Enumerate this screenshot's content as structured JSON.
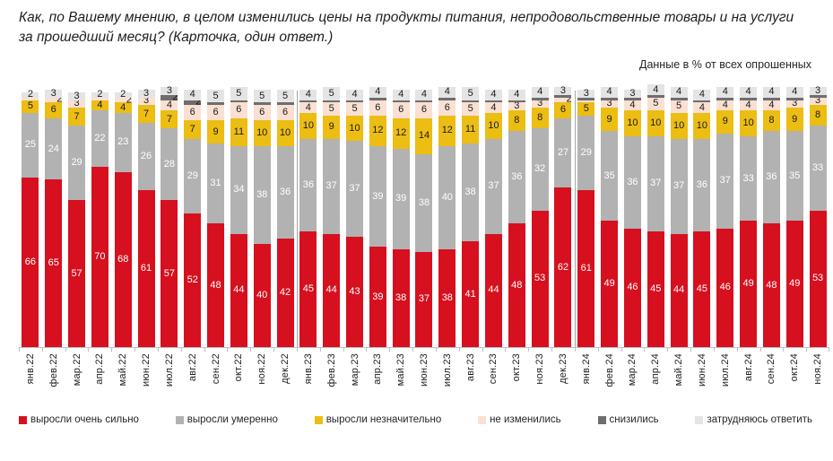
{
  "title": "Как, по Вашему мнению, в целом изменились цены на продукты питания, непродовольственные товары и на услуги за прошедший месяц? (Карточка, один ответ.)",
  "subtitle": "Данные в % от всех опрошенных",
  "chart_data": {
    "type": "bar",
    "stacked": true,
    "unit": "%",
    "legend_position": "bottom",
    "categories": [
      "янв.22",
      "фев.22",
      "мар.22",
      "апр.22",
      "май.22",
      "июн.22",
      "июл.22",
      "авг.22",
      "сен.22",
      "окт.22",
      "ноя.22",
      "дек.22",
      "янв.23",
      "фев.23",
      "мар.23",
      "апр.23",
      "май.23",
      "июн.23",
      "июл.23",
      "авг.23",
      "сен.23",
      "окт.23",
      "ноя.23",
      "дек.23",
      "янв.24",
      "фев.24",
      "мар.24",
      "апр.24",
      "май.24",
      "июн.24",
      "июл.24",
      "авг.24",
      "сен.24",
      "окт.24",
      "ноя.24"
    ],
    "series": [
      {
        "name": "выросли очень сильно",
        "color": "#d6101e",
        "label_color": "#ffffff",
        "values": [
          66,
          65,
          57,
          70,
          68,
          61,
          57,
          52,
          48,
          44,
          40,
          42,
          45,
          44,
          43,
          39,
          38,
          37,
          38,
          41,
          44,
          48,
          53,
          62,
          61,
          49,
          46,
          45,
          44,
          45,
          46,
          49,
          48,
          49,
          53
        ]
      },
      {
        "name": "выросли умеренно",
        "color": "#b2b2b2",
        "label_color": "#ffffff",
        "values": [
          25,
          24,
          29,
          22,
          23,
          26,
          28,
          29,
          31,
          34,
          38,
          36,
          36,
          37,
          37,
          39,
          39,
          38,
          40,
          38,
          37,
          36,
          32,
          27,
          29,
          35,
          36,
          37,
          37,
          36,
          37,
          33,
          36,
          35,
          33
        ]
      },
      {
        "name": "выросли незначительно",
        "color": "#ecbd13",
        "label_color": "#1a1a1a",
        "values": [
          5,
          6,
          7,
          4,
          4,
          7,
          7,
          7,
          9,
          11,
          10,
          10,
          10,
          9,
          10,
          12,
          12,
          14,
          12,
          11,
          10,
          8,
          8,
          6,
          5,
          9,
          10,
          10,
          10,
          10,
          9,
          10,
          8,
          9,
          8
        ]
      },
      {
        "name": "не изменились",
        "color": "#fae0d2",
        "label_color": "#1a1a1a",
        "values": [
          1,
          2,
          3,
          1,
          2,
          3,
          4,
          6,
          6,
          6,
          6,
          6,
          4,
          5,
          5,
          6,
          6,
          6,
          6,
          5,
          4,
          3,
          3,
          2,
          1,
          3,
          4,
          5,
          5,
          4,
          4,
          4,
          4,
          3,
          3
        ]
      },
      {
        "name": "снизились",
        "color": "#6e6e6e",
        "label_color": "#1a1a1a",
        "values": [
          0,
          0,
          0,
          0,
          0,
          0,
          2,
          2,
          1,
          1,
          1,
          1,
          1,
          1,
          1,
          1,
          1,
          1,
          1,
          1,
          1,
          1,
          1,
          1,
          1,
          1,
          1,
          1,
          1,
          1,
          1,
          1,
          1,
          1,
          1
        ]
      },
      {
        "name": "затрудняюсь ответить",
        "color": "#e4e4e4",
        "label_color": "#1a1a1a",
        "values": [
          2,
          3,
          3,
          2,
          2,
          3,
          3,
          4,
          5,
          5,
          5,
          5,
          4,
          5,
          4,
          4,
          4,
          4,
          4,
          5,
          4,
          4,
          4,
          3,
          3,
          4,
          3,
          4,
          4,
          4,
          4,
          4,
          4,
          4,
          3
        ]
      }
    ],
    "year_separators_after": [
      "дек.22",
      "дек.23"
    ],
    "axis_color": "#bfbfbf"
  }
}
